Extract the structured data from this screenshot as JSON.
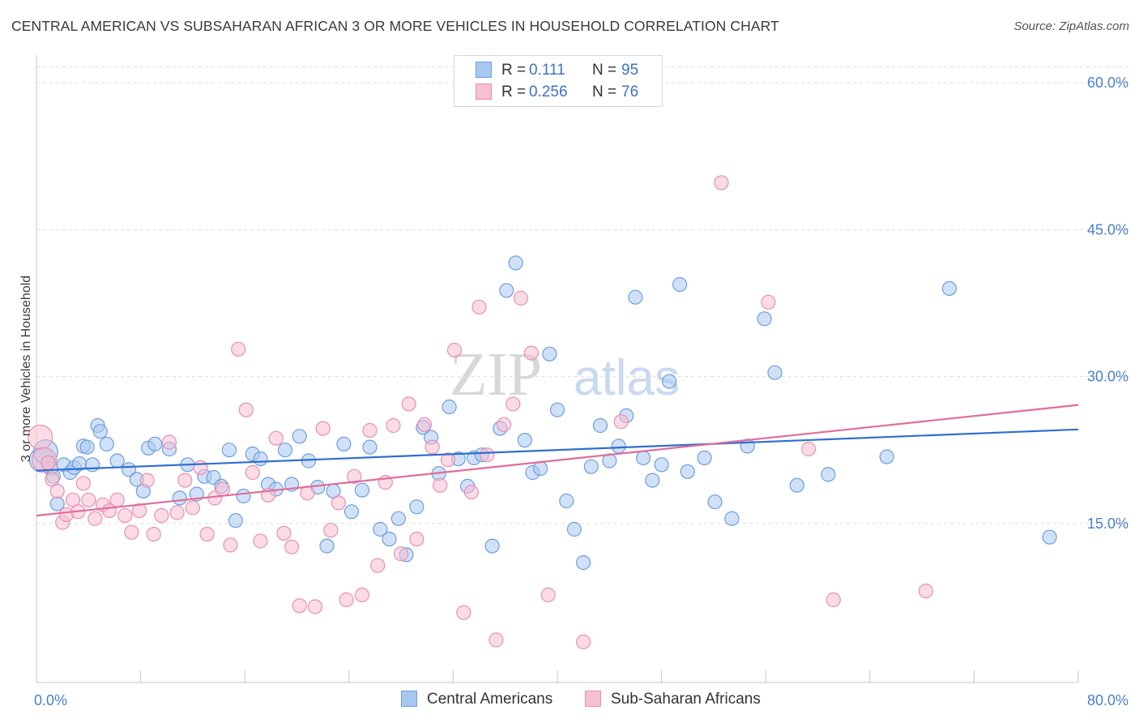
{
  "header": {
    "title": "CENTRAL AMERICAN VS SUBSAHARAN AFRICAN 3 OR MORE VEHICLES IN HOUSEHOLD CORRELATION CHART",
    "source": "Source: ZipAtlas.com"
  },
  "watermark": "ZIPatlas",
  "legend": {
    "rows": [
      {
        "r_label": "R =",
        "r_value": "0.111",
        "n_label": "N =",
        "n_value": "95"
      },
      {
        "r_label": "R =",
        "r_value": "0.256",
        "n_label": "N =",
        "n_value": "76"
      }
    ]
  },
  "bottom_legend": {
    "series1": "Central Americans",
    "series2": "Sub-Saharan Africans"
  },
  "colors": {
    "blue_fill": "#a9c8f0",
    "blue_stroke": "#6d9ee0",
    "blue_line": "#2f6fce",
    "pink_fill": "#f7bfd2",
    "pink_stroke": "#ea8fb0",
    "pink_line": "#e06d9a",
    "tick_text": "#4a7fd0"
  },
  "chart_data": {
    "type": "scatter",
    "title": "CENTRAL AMERICAN VS SUBSAHARAN AFRICAN 3 OR MORE VEHICLES IN HOUSEHOLD CORRELATION CHART",
    "xlabel": "",
    "ylabel": "3 or more Vehicles in Household",
    "xlim": [
      0,
      80
    ],
    "ylim": [
      0,
      62
    ],
    "x_tick_labels": [
      "0.0%",
      "80.0%"
    ],
    "y_ticks": [
      15,
      30,
      45,
      60
    ],
    "y_tick_labels": [
      "15.0%",
      "30.0%",
      "45.0%",
      "60.0%"
    ],
    "grid": true,
    "legend_position": "top-center",
    "series": [
      {
        "name": "Central Americans",
        "color": "#a9c8f0",
        "trend": {
          "x": [
            0,
            80
          ],
          "y": [
            20.4,
            24.6
          ]
        },
        "points": [
          [
            0.4,
            21.5
          ],
          [
            0.7,
            22.3
          ],
          [
            0.9,
            21.2
          ],
          [
            1.1,
            20.6
          ],
          [
            1.3,
            19.8
          ],
          [
            1.6,
            17.0
          ],
          [
            2.1,
            21.0
          ],
          [
            2.6,
            20.2
          ],
          [
            2.9,
            20.7
          ],
          [
            3.3,
            21.1
          ],
          [
            3.6,
            22.9
          ],
          [
            3.9,
            22.8
          ],
          [
            4.3,
            21.0
          ],
          [
            4.7,
            25.0
          ],
          [
            4.9,
            24.4
          ],
          [
            5.4,
            23.1
          ],
          [
            6.2,
            21.4
          ],
          [
            7.1,
            20.5
          ],
          [
            7.7,
            19.5
          ],
          [
            8.2,
            18.3
          ],
          [
            8.6,
            22.7
          ],
          [
            9.1,
            23.1
          ],
          [
            10.2,
            22.6
          ],
          [
            11.0,
            17.6
          ],
          [
            11.6,
            21.0
          ],
          [
            12.3,
            18.0
          ],
          [
            12.9,
            19.8
          ],
          [
            13.6,
            19.7
          ],
          [
            14.2,
            18.8
          ],
          [
            14.8,
            22.5
          ],
          [
            15.3,
            15.3
          ],
          [
            15.9,
            17.8
          ],
          [
            16.6,
            22.1
          ],
          [
            17.2,
            21.6
          ],
          [
            17.8,
            19.0
          ],
          [
            18.4,
            18.5
          ],
          [
            19.1,
            22.5
          ],
          [
            19.6,
            19.0
          ],
          [
            20.2,
            23.9
          ],
          [
            20.9,
            21.4
          ],
          [
            21.6,
            18.7
          ],
          [
            22.3,
            12.7
          ],
          [
            22.8,
            18.3
          ],
          [
            23.6,
            23.1
          ],
          [
            24.2,
            16.2
          ],
          [
            25.0,
            18.4
          ],
          [
            25.6,
            22.8
          ],
          [
            26.4,
            14.4
          ],
          [
            27.1,
            13.4
          ],
          [
            27.8,
            15.5
          ],
          [
            28.4,
            11.8
          ],
          [
            29.2,
            16.7
          ],
          [
            29.7,
            24.8
          ],
          [
            30.3,
            23.8
          ],
          [
            30.9,
            20.1
          ],
          [
            31.7,
            26.9
          ],
          [
            32.4,
            21.6
          ],
          [
            33.1,
            18.8
          ],
          [
            33.6,
            21.7
          ],
          [
            34.2,
            22.0
          ],
          [
            35.0,
            12.7
          ],
          [
            35.6,
            24.7
          ],
          [
            36.1,
            38.8
          ],
          [
            36.8,
            41.6
          ],
          [
            37.5,
            23.5
          ],
          [
            38.1,
            20.2
          ],
          [
            38.7,
            20.6
          ],
          [
            39.4,
            32.3
          ],
          [
            40.0,
            26.6
          ],
          [
            40.7,
            17.3
          ],
          [
            41.3,
            14.4
          ],
          [
            42.0,
            11.0
          ],
          [
            42.6,
            20.8
          ],
          [
            43.3,
            25.0
          ],
          [
            44.0,
            21.4
          ],
          [
            44.7,
            22.9
          ],
          [
            45.3,
            26.0
          ],
          [
            46.0,
            38.1
          ],
          [
            46.6,
            21.7
          ],
          [
            47.3,
            19.4
          ],
          [
            48.0,
            21.0
          ],
          [
            48.6,
            29.5
          ],
          [
            49.4,
            39.4
          ],
          [
            50.0,
            20.3
          ],
          [
            51.3,
            21.7
          ],
          [
            52.1,
            17.2
          ],
          [
            53.4,
            15.5
          ],
          [
            54.6,
            22.9
          ],
          [
            55.9,
            35.9
          ],
          [
            56.7,
            30.4
          ],
          [
            58.4,
            18.9
          ],
          [
            60.8,
            20.0
          ],
          [
            65.3,
            21.8
          ],
          [
            70.1,
            39.0
          ],
          [
            77.8,
            13.6
          ]
        ]
      },
      {
        "name": "Sub-Saharan Africans",
        "color": "#f7bfd2",
        "trend": {
          "x": [
            0,
            80
          ],
          "y": [
            15.8,
            27.1
          ]
        },
        "points": [
          [
            0.3,
            23.8
          ],
          [
            0.6,
            21.5
          ],
          [
            0.9,
            21.2
          ],
          [
            1.2,
            19.5
          ],
          [
            1.6,
            18.3
          ],
          [
            2.0,
            15.1
          ],
          [
            2.3,
            15.9
          ],
          [
            2.8,
            17.4
          ],
          [
            3.2,
            16.2
          ],
          [
            3.6,
            19.1
          ],
          [
            4.0,
            17.4
          ],
          [
            4.5,
            15.5
          ],
          [
            5.1,
            16.9
          ],
          [
            5.6,
            16.3
          ],
          [
            6.2,
            17.4
          ],
          [
            6.8,
            15.8
          ],
          [
            7.3,
            14.1
          ],
          [
            7.9,
            16.3
          ],
          [
            8.5,
            19.4
          ],
          [
            9.0,
            13.9
          ],
          [
            9.6,
            15.8
          ],
          [
            10.2,
            23.3
          ],
          [
            10.8,
            16.1
          ],
          [
            11.4,
            19.4
          ],
          [
            12.0,
            16.6
          ],
          [
            12.6,
            20.7
          ],
          [
            13.1,
            13.9
          ],
          [
            13.7,
            17.6
          ],
          [
            14.3,
            18.5
          ],
          [
            14.9,
            12.8
          ],
          [
            15.5,
            32.8
          ],
          [
            16.1,
            26.6
          ],
          [
            16.6,
            20.2
          ],
          [
            17.2,
            13.2
          ],
          [
            17.8,
            17.9
          ],
          [
            18.4,
            23.7
          ],
          [
            19.0,
            14.0
          ],
          [
            19.6,
            12.6
          ],
          [
            20.2,
            6.6
          ],
          [
            20.8,
            18.1
          ],
          [
            21.4,
            6.5
          ],
          [
            22.0,
            24.7
          ],
          [
            22.6,
            14.3
          ],
          [
            23.2,
            17.1
          ],
          [
            23.8,
            7.2
          ],
          [
            24.4,
            19.8
          ],
          [
            25.0,
            7.7
          ],
          [
            25.6,
            24.5
          ],
          [
            26.2,
            10.7
          ],
          [
            26.8,
            19.2
          ],
          [
            27.4,
            25.0
          ],
          [
            28.0,
            11.9
          ],
          [
            28.6,
            27.2
          ],
          [
            29.2,
            13.4
          ],
          [
            29.8,
            25.1
          ],
          [
            30.4,
            22.8
          ],
          [
            31.0,
            18.9
          ],
          [
            31.6,
            21.5
          ],
          [
            32.1,
            32.7
          ],
          [
            32.8,
            5.9
          ],
          [
            33.4,
            18.2
          ],
          [
            34.0,
            37.1
          ],
          [
            34.6,
            22.0
          ],
          [
            35.3,
            3.1
          ],
          [
            35.9,
            25.1
          ],
          [
            36.6,
            27.2
          ],
          [
            37.2,
            38.0
          ],
          [
            38.0,
            32.4
          ],
          [
            39.3,
            7.7
          ],
          [
            42.0,
            2.9
          ],
          [
            44.9,
            25.4
          ],
          [
            52.6,
            49.8
          ],
          [
            56.2,
            37.6
          ],
          [
            59.3,
            22.6
          ],
          [
            61.2,
            7.2
          ],
          [
            68.3,
            8.1
          ]
        ]
      }
    ]
  }
}
